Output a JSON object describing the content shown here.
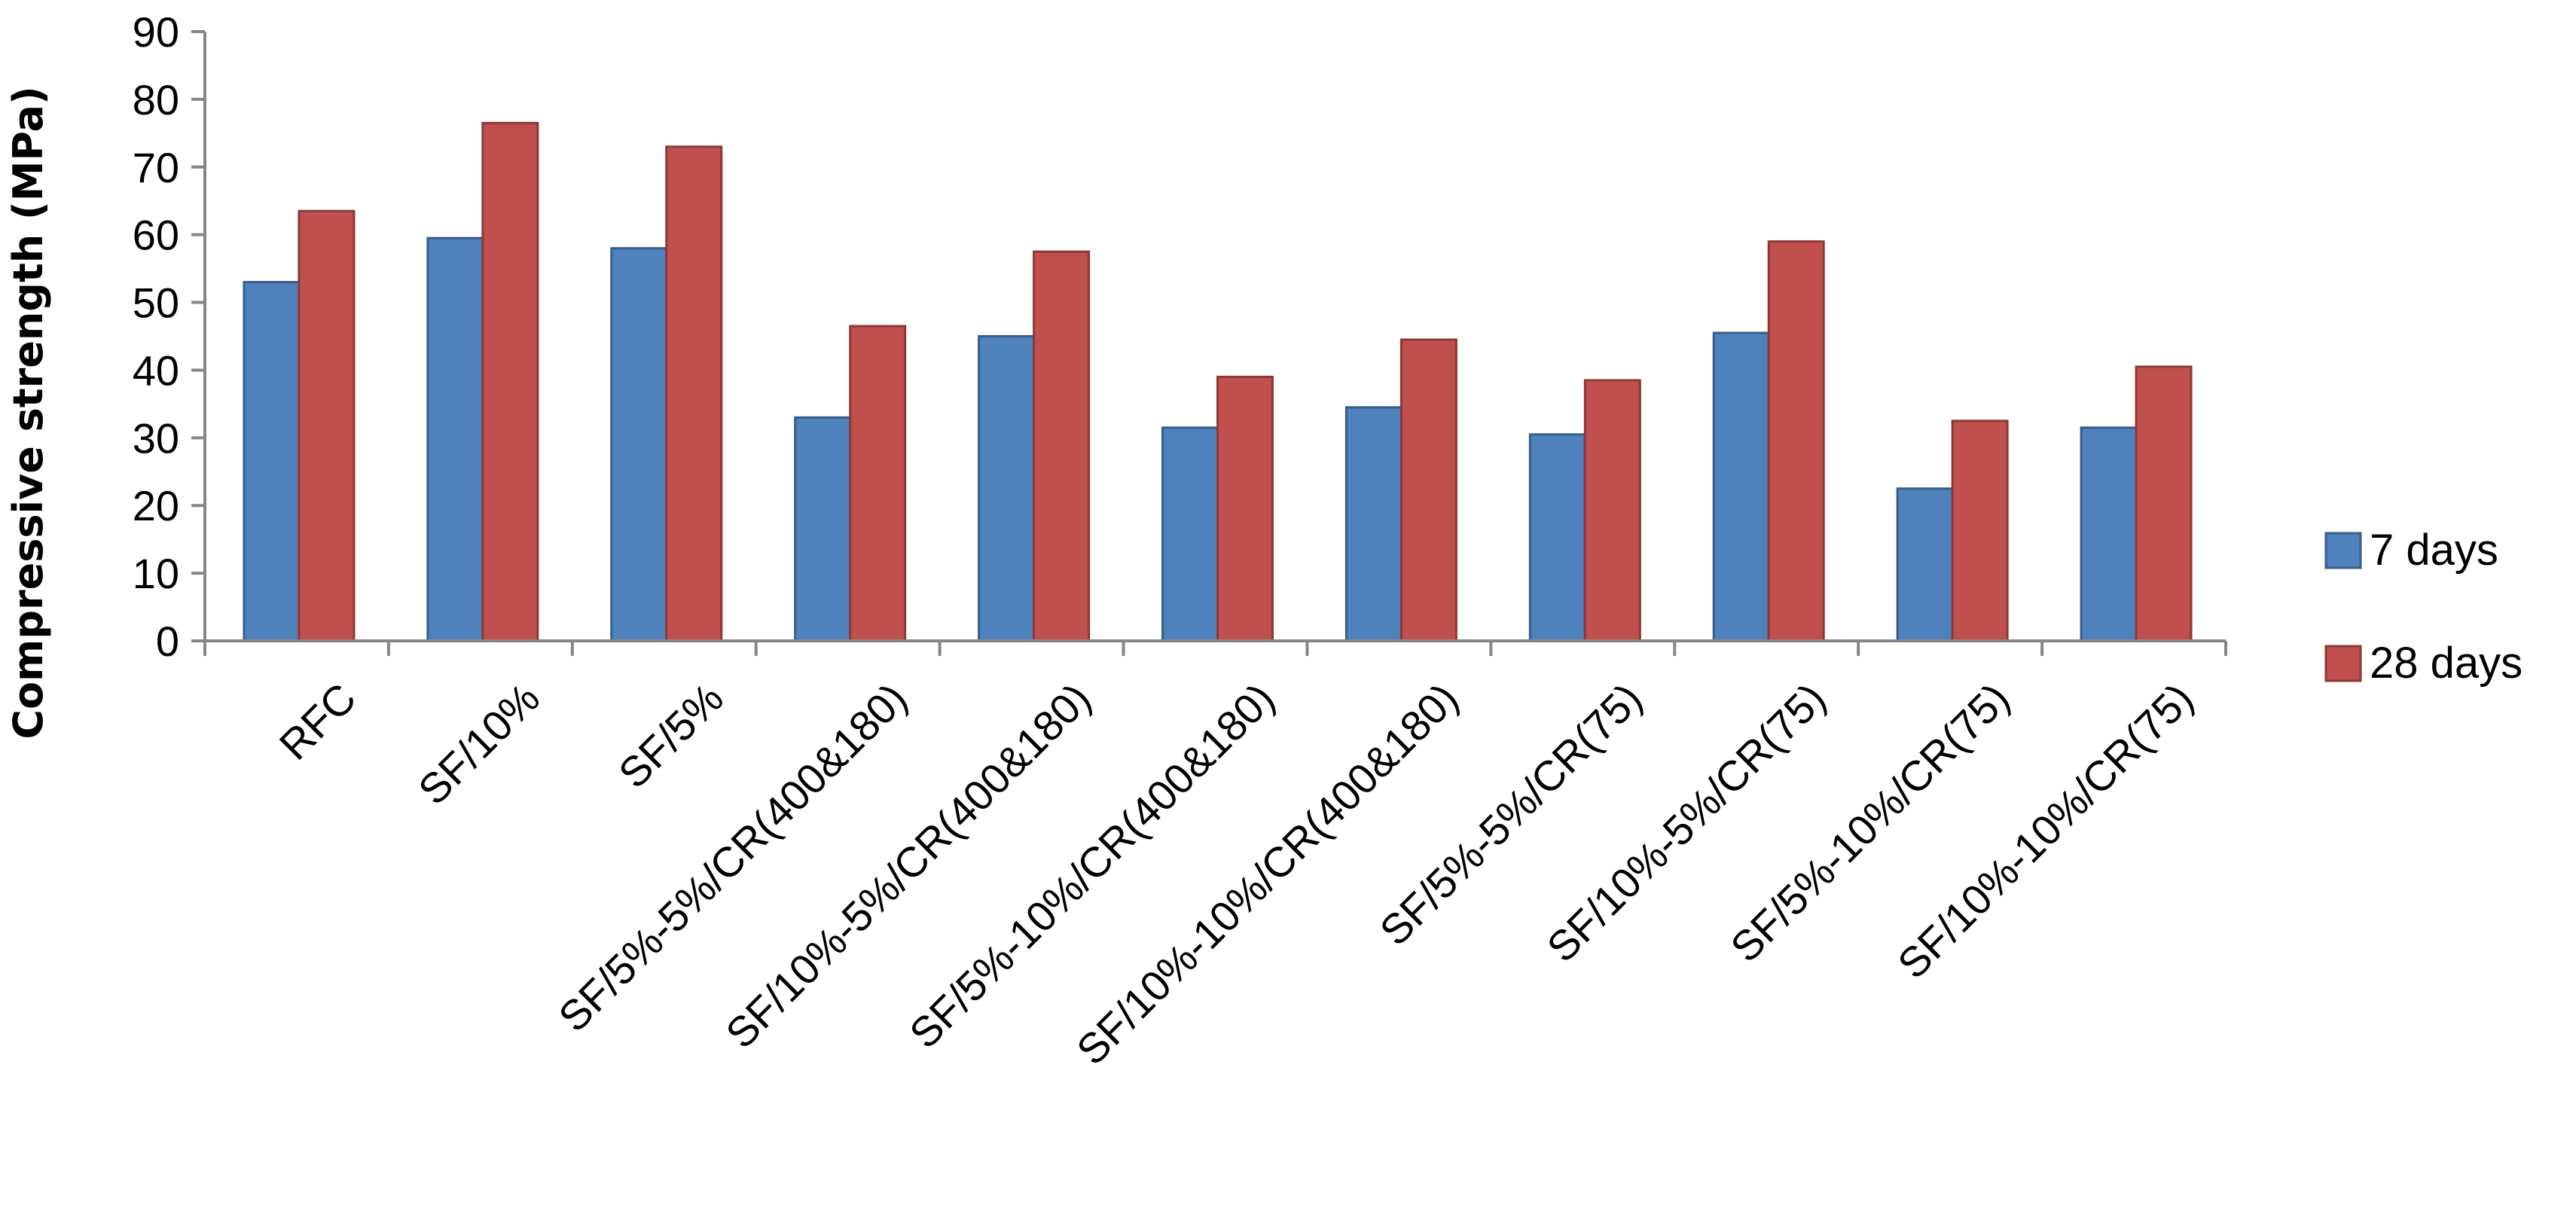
{
  "chart_data": {
    "type": "bar",
    "title": "",
    "xlabel": "",
    "ylabel": "Compressive strength (MPa)",
    "ylim": [
      0,
      90
    ],
    "ytick_step": 10,
    "grid": false,
    "legend_position": "right",
    "categories": [
      "RFC",
      "SF/10%",
      "SF/5%",
      "SF/5%-5%/CR(400&180)",
      "SF/10%-5%/CR(400&180)",
      "SF/5%-10%/CR(400&180)",
      "SF/10%-10%/CR(400&180)",
      "SF/5%-5%/CR(75)",
      "SF/10%-5%/CR(75)",
      "SF/5%-10%/CR(75)",
      "SF/10%-10%/CR(75)"
    ],
    "series": [
      {
        "name": "7 days",
        "color": "#4F81BD",
        "stroke": "#385D8A",
        "values": [
          53,
          59.5,
          58,
          33,
          45,
          31.5,
          34.5,
          30.5,
          45.5,
          22.5,
          31.5
        ]
      },
      {
        "name": "28 days",
        "color": "#C0504D",
        "stroke": "#8C3836",
        "values": [
          63.5,
          76.5,
          73,
          46.5,
          57.5,
          39,
          44.5,
          38.5,
          59,
          32.5,
          40.5
        ]
      }
    ]
  }
}
